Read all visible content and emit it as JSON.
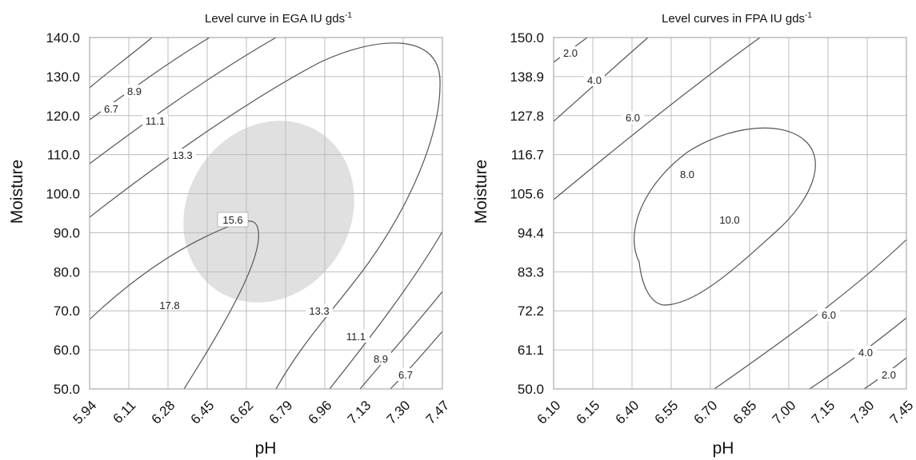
{
  "chart_data": [
    {
      "type": "contour",
      "title": "Level curve in  EGA IU gds",
      "title_sup": "-1",
      "xlabel": "pH",
      "ylabel": "Moisture",
      "x_ticks": [
        "5.94",
        "6.11",
        "6.28",
        "6.45",
        "6.62",
        "6.79",
        "6.96",
        "7.13",
        "7.30",
        "7.47"
      ],
      "y_ticks": [
        "50.0",
        "60.0",
        "70.0",
        "80.0",
        "90.0",
        "100.0",
        "110.0",
        "120.0",
        "130.0",
        "140.0"
      ],
      "xlim": [
        5.94,
        7.47
      ],
      "ylim": [
        50,
        140
      ],
      "grid": true,
      "shaded_region": {
        "center": [
          6.79,
          95
        ],
        "semi_axes_ph_moisture": [
          0.2,
          24
        ],
        "color": "#e0e0e0"
      },
      "contour_levels": [
        "6.7",
        "8.9",
        "11.1",
        "13.3",
        "15.6",
        "17.8",
        "13.3",
        "11.1",
        "8.9",
        "6.7"
      ]
    },
    {
      "type": "contour",
      "title": "Level curves in FPA IU gds",
      "title_sup": "-1",
      "xlabel": "pH",
      "ylabel": "Moisture",
      "x_ticks": [
        "6.10",
        "6.15",
        "6.40",
        "6.55",
        "6.70",
        "6.85",
        "7.00",
        "7.15",
        "7.30",
        "7.45"
      ],
      "y_ticks": [
        "50.0",
        "61.1",
        "72.2",
        "83.3",
        "94.4",
        "105.6",
        "116.7",
        "127.8",
        "138.9",
        "150.0"
      ],
      "xlim": [
        6.1,
        7.45
      ],
      "ylim": [
        50,
        150
      ],
      "grid": true,
      "contour_levels": [
        "2.0",
        "4.0",
        "6.0",
        "8.0",
        "10.0",
        "6.0",
        "4.0",
        "2.0"
      ]
    }
  ]
}
